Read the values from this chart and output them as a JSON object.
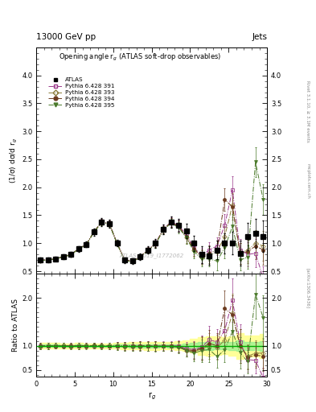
{
  "title_top": "13000 GeV pp",
  "title_right": "Jets",
  "plot_title": "Opening angle r$_g$ (ATLAS soft-drop observables)",
  "xlabel": "r$_g$",
  "ylabel_main": "(1/σ) dσ/d r$_g$",
  "ylabel_ratio": "Ratio to ATLAS",
  "watermark": "ATLAS_2019_I1772062",
  "right_label_top": "Rivet 3.1.10, ≥ 3.1M events",
  "right_label_mid": "mcplots.cern.ch",
  "right_label_bot": "[arXiv:1306.3436]",
  "xlim": [
    0,
    30
  ],
  "ylim_main": [
    0.45,
    4.5
  ],
  "ylim_ratio": [
    0.35,
    2.5
  ],
  "yticks_main": [
    0.5,
    1.0,
    1.5,
    2.0,
    2.5,
    3.0,
    3.5,
    4.0
  ],
  "yticks_ratio": [
    0.5,
    1.0,
    2.0
  ],
  "xticks": [
    0,
    5,
    10,
    15,
    20,
    25,
    30
  ],
  "x_data": [
    0.5,
    1.5,
    2.5,
    3.5,
    4.5,
    5.5,
    6.5,
    7.5,
    8.5,
    9.5,
    10.5,
    11.5,
    12.5,
    13.5,
    14.5,
    15.5,
    16.5,
    17.5,
    18.5,
    19.5,
    20.5,
    21.5,
    22.5,
    23.5,
    24.5,
    25.5,
    26.5,
    27.5,
    28.5,
    29.5
  ],
  "atlas_y": [
    0.7,
    0.7,
    0.72,
    0.76,
    0.8,
    0.9,
    0.98,
    1.2,
    1.38,
    1.35,
    1.0,
    0.7,
    0.68,
    0.76,
    0.88,
    1.0,
    1.25,
    1.38,
    1.32,
    1.22,
    1.0,
    0.8,
    0.78,
    0.88,
    1.0,
    1.0,
    0.82,
    1.12,
    1.18,
    1.12
  ],
  "atlas_yerr": [
    0.04,
    0.04,
    0.04,
    0.04,
    0.04,
    0.05,
    0.05,
    0.06,
    0.07,
    0.07,
    0.06,
    0.05,
    0.05,
    0.06,
    0.07,
    0.08,
    0.09,
    0.1,
    0.12,
    0.13,
    0.14,
    0.15,
    0.16,
    0.17,
    0.18,
    0.2,
    0.22,
    0.24,
    0.26,
    0.28
  ],
  "p391_y": [
    0.7,
    0.7,
    0.72,
    0.76,
    0.8,
    0.9,
    0.98,
    1.2,
    1.38,
    1.35,
    1.0,
    0.7,
    0.68,
    0.76,
    0.88,
    1.0,
    1.25,
    1.38,
    1.32,
    1.15,
    0.92,
    0.78,
    0.88,
    0.95,
    1.32,
    1.95,
    0.88,
    0.8,
    0.82,
    0.38
  ],
  "p391_yerr": [
    0.02,
    0.02,
    0.02,
    0.02,
    0.02,
    0.03,
    0.03,
    0.04,
    0.05,
    0.05,
    0.04,
    0.03,
    0.03,
    0.04,
    0.05,
    0.06,
    0.07,
    0.08,
    0.1,
    0.11,
    0.12,
    0.13,
    0.14,
    0.16,
    0.2,
    0.24,
    0.2,
    0.22,
    0.25,
    0.2
  ],
  "p393_y": [
    0.69,
    0.7,
    0.72,
    0.76,
    0.79,
    0.9,
    0.98,
    1.2,
    1.37,
    1.34,
    0.99,
    0.69,
    0.67,
    0.75,
    0.87,
    0.99,
    1.24,
    1.37,
    1.3,
    1.1,
    0.88,
    0.75,
    0.78,
    0.85,
    1.12,
    1.68,
    0.82,
    0.88,
    1.0,
    0.95
  ],
  "p393_yerr": [
    0.02,
    0.02,
    0.02,
    0.02,
    0.02,
    0.03,
    0.03,
    0.04,
    0.05,
    0.05,
    0.04,
    0.03,
    0.03,
    0.04,
    0.05,
    0.06,
    0.07,
    0.08,
    0.1,
    0.11,
    0.12,
    0.13,
    0.14,
    0.16,
    0.19,
    0.22,
    0.19,
    0.21,
    0.23,
    0.27
  ],
  "p394_y": [
    0.7,
    0.7,
    0.72,
    0.76,
    0.8,
    0.9,
    0.98,
    1.21,
    1.38,
    1.35,
    1.0,
    0.7,
    0.68,
    0.76,
    0.88,
    0.99,
    1.24,
    1.37,
    1.3,
    1.12,
    0.9,
    0.76,
    0.82,
    0.88,
    1.78,
    1.65,
    0.82,
    0.85,
    0.95,
    0.88
  ],
  "p394_yerr": [
    0.02,
    0.02,
    0.02,
    0.02,
    0.02,
    0.03,
    0.03,
    0.04,
    0.05,
    0.05,
    0.04,
    0.03,
    0.03,
    0.04,
    0.05,
    0.06,
    0.07,
    0.08,
    0.1,
    0.11,
    0.12,
    0.13,
    0.14,
    0.16,
    0.2,
    0.23,
    0.19,
    0.21,
    0.24,
    0.26
  ],
  "p395_y": [
    0.69,
    0.7,
    0.72,
    0.76,
    0.79,
    0.9,
    0.97,
    1.2,
    1.37,
    1.34,
    0.99,
    0.69,
    0.67,
    0.75,
    0.87,
    0.98,
    1.23,
    1.36,
    1.28,
    1.1,
    0.85,
    0.72,
    0.72,
    0.68,
    0.92,
    1.3,
    0.7,
    0.75,
    2.45,
    1.78
  ],
  "p395_yerr": [
    0.02,
    0.02,
    0.02,
    0.02,
    0.02,
    0.03,
    0.03,
    0.04,
    0.05,
    0.05,
    0.04,
    0.03,
    0.03,
    0.04,
    0.05,
    0.06,
    0.07,
    0.08,
    0.1,
    0.11,
    0.12,
    0.13,
    0.14,
    0.16,
    0.19,
    0.22,
    0.19,
    0.21,
    0.27,
    0.27
  ],
  "colors": {
    "atlas": "#000000",
    "p391": "#9B3A8B",
    "p393": "#8B7B3A",
    "p394": "#6B3A1E",
    "p395": "#4B7A2B"
  },
  "band_yellow": "#FFFF99",
  "band_green": "#90EE90",
  "line_green": "#00AA00"
}
